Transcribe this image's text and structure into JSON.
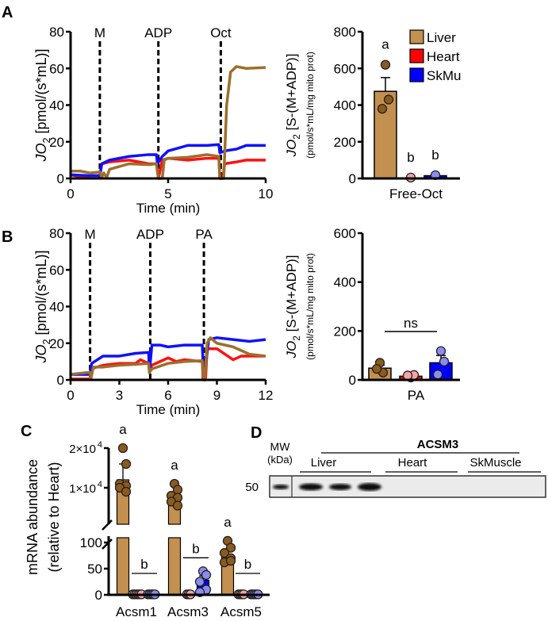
{
  "panels": {
    "A": "A",
    "B": "B",
    "C": "C",
    "D": "D"
  },
  "colors": {
    "liver_trace": "#9c6f2c",
    "heart_trace": "#ff1010",
    "skmu_trace": "#1010ff",
    "liver_bar": "#c4904f",
    "liver_pt": "#8b5a1e",
    "heart_bar": "#ff0000",
    "heart_pt": "#f4a4a4",
    "skmu_bar": "#0000ff",
    "skmu_pt": "#8c8cf0"
  },
  "chart_data": [
    {
      "id": "A-trace",
      "type": "line",
      "ylabel": "JO2 [pmol/(s*mL)]",
      "ylabel_main": "JO",
      "ylabel_sub": "2",
      "ylabel_rest": " [pmol/(s*mL)]",
      "xlabel": "Time (min)",
      "xlim": [
        0,
        10
      ],
      "ylim": [
        0,
        80
      ],
      "xticks": [
        "0",
        "5",
        "10"
      ],
      "xtick_values": [
        0,
        5,
        10
      ],
      "yticks": [
        "0",
        "20",
        "40",
        "60",
        "80"
      ],
      "ytick_values": [
        0,
        20,
        40,
        60,
        80
      ],
      "additions": [
        {
          "label": "M",
          "t": 1.5
        },
        {
          "label": "ADP",
          "t": 4.5
        },
        {
          "label": "Oct",
          "t": 7.7
        }
      ],
      "series": [
        {
          "name": "Heart",
          "color": "heart_trace",
          "points": [
            [
              0,
              2
            ],
            [
              0.7,
              0.5
            ],
            [
              1,
              1.5
            ],
            [
              1.5,
              1.5
            ],
            [
              1.6,
              8
            ],
            [
              2,
              9
            ],
            [
              3,
              10
            ],
            [
              4,
              8
            ],
            [
              4.4,
              8
            ],
            [
              4.5,
              0
            ],
            [
              4.7,
              10
            ],
            [
              5,
              11
            ],
            [
              6,
              10
            ],
            [
              7,
              11
            ],
            [
              7.6,
              11
            ],
            [
              7.65,
              0
            ],
            [
              7.8,
              0
            ],
            [
              7.9,
              8
            ],
            [
              8.5,
              9
            ],
            [
              9,
              10
            ],
            [
              10,
              10
            ]
          ]
        },
        {
          "name": "SkMu",
          "color": "skmu_trace",
          "points": [
            [
              0,
              2
            ],
            [
              1,
              1.5
            ],
            [
              1.5,
              1.5
            ],
            [
              1.6,
              8
            ],
            [
              2,
              10
            ],
            [
              3,
              12
            ],
            [
              4,
              13
            ],
            [
              4.4,
              13
            ],
            [
              4.45,
              8
            ],
            [
              4.7,
              12
            ],
            [
              5,
              15
            ],
            [
              6,
              18
            ],
            [
              7,
              18
            ],
            [
              7.6,
              18.5
            ],
            [
              7.65,
              14
            ],
            [
              7.9,
              15
            ],
            [
              8.5,
              16
            ],
            [
              9,
              18
            ],
            [
              10,
              18
            ]
          ]
        },
        {
          "name": "Liver",
          "color": "liver_trace",
          "points": [
            [
              0,
              4
            ],
            [
              0.5,
              4
            ],
            [
              1,
              3
            ],
            [
              1.5,
              3.5
            ],
            [
              1.6,
              0.5
            ],
            [
              1.7,
              3
            ],
            [
              1.85,
              0.5
            ],
            [
              2,
              5
            ],
            [
              3,
              8
            ],
            [
              4,
              7.5
            ],
            [
              4.4,
              8
            ],
            [
              4.5,
              0
            ],
            [
              4.7,
              0
            ],
            [
              4.8,
              10
            ],
            [
              5,
              11
            ],
            [
              6,
              11.5
            ],
            [
              7,
              13
            ],
            [
              7.6,
              12
            ],
            [
              7.65,
              0
            ],
            [
              7.85,
              0
            ],
            [
              8,
              40
            ],
            [
              8.2,
              58
            ],
            [
              8.5,
              61
            ],
            [
              9,
              60
            ],
            [
              10,
              60.5
            ]
          ]
        }
      ]
    },
    {
      "id": "A-bar",
      "type": "bar",
      "ylabel_main": "JO",
      "ylabel_sub": "2",
      "ylabel_rest": " [S-(M+ADP)]",
      "ylabel2": "(pmol/s*mL/mg mito prot)",
      "xlabel": "Free-Oct",
      "ylim": [
        0,
        800
      ],
      "yticks": [
        "0",
        "200",
        "400",
        "600",
        "800"
      ],
      "ytick_values": [
        0,
        200,
        400,
        600,
        800
      ],
      "legend": [
        "Liver",
        "Heart",
        "SkMu"
      ],
      "bars": [
        {
          "name": "Liver",
          "mean": 475,
          "sem": 75,
          "points": [
            620,
            430,
            380
          ],
          "sig": "a"
        },
        {
          "name": "Heart",
          "mean": 3,
          "sem": 0,
          "points": [
            5
          ],
          "sig": "b"
        },
        {
          "name": "SkMu",
          "mean": 15,
          "sem": 0,
          "points": [
            18
          ],
          "sig": "b"
        }
      ]
    },
    {
      "id": "B-trace",
      "type": "line",
      "ylabel_main": "JO",
      "ylabel_sub": "2",
      "ylabel_rest": " [pmol/(s*mL)]",
      "xlabel": "Time (min)",
      "xlim": [
        0,
        12
      ],
      "ylim": [
        0,
        80
      ],
      "xticks": [
        "0",
        "3",
        "6",
        "9",
        "12"
      ],
      "xtick_values": [
        0,
        3,
        6,
        9,
        12
      ],
      "yticks": [
        "0",
        "20",
        "40",
        "60",
        "80"
      ],
      "ytick_values": [
        0,
        20,
        40,
        60,
        80
      ],
      "additions": [
        {
          "label": "M",
          "t": 1.2
        },
        {
          "label": "ADP",
          "t": 4.9
        },
        {
          "label": "PA",
          "t": 8.2
        }
      ],
      "series": [
        {
          "name": "Heart",
          "color": "heart_trace",
          "points": [
            [
              0,
              0.5
            ],
            [
              1.2,
              0.5
            ],
            [
              1.25,
              6
            ],
            [
              2,
              8
            ],
            [
              3,
              9
            ],
            [
              4,
              9
            ],
            [
              4.3,
              11
            ],
            [
              4.8,
              9
            ],
            [
              4.85,
              5
            ],
            [
              5,
              8
            ],
            [
              6,
              12
            ],
            [
              6.5,
              10
            ],
            [
              7,
              11
            ],
            [
              8.1,
              10
            ],
            [
              8.15,
              0
            ],
            [
              8.3,
              0
            ],
            [
              8.4,
              17
            ],
            [
              9,
              17
            ],
            [
              10,
              11
            ],
            [
              10.5,
              13
            ],
            [
              12,
              13
            ]
          ]
        },
        {
          "name": "SkMu",
          "color": "skmu_trace",
          "points": [
            [
              0,
              3
            ],
            [
              1,
              3
            ],
            [
              1.2,
              3
            ],
            [
              1.3,
              9
            ],
            [
              2,
              13
            ],
            [
              3,
              13
            ],
            [
              4,
              14.5
            ],
            [
              4.8,
              15
            ],
            [
              4.85,
              4
            ],
            [
              5,
              19
            ],
            [
              5.5,
              19
            ],
            [
              6,
              18
            ],
            [
              7,
              19
            ],
            [
              8.1,
              19
            ],
            [
              8.15,
              9
            ],
            [
              8.3,
              8
            ],
            [
              8.5,
              22
            ],
            [
              9,
              23
            ],
            [
              10,
              22
            ],
            [
              11,
              21
            ],
            [
              12,
              22
            ]
          ]
        },
        {
          "name": "Liver",
          "color": "liver_trace",
          "points": [
            [
              0,
              3
            ],
            [
              1,
              4
            ],
            [
              1.2,
              4
            ],
            [
              1.25,
              0.5
            ],
            [
              1.4,
              7
            ],
            [
              2,
              7
            ],
            [
              3,
              8
            ],
            [
              4,
              8.5
            ],
            [
              4.8,
              9
            ],
            [
              4.85,
              4
            ],
            [
              5,
              6
            ],
            [
              6,
              9
            ],
            [
              7,
              10
            ],
            [
              8.1,
              10.5
            ],
            [
              8.15,
              3
            ],
            [
              8.25,
              0
            ],
            [
              8.4,
              20
            ],
            [
              8.6,
              23
            ],
            [
              9,
              20
            ],
            [
              10,
              18
            ],
            [
              11,
              14
            ],
            [
              12,
              13
            ]
          ]
        }
      ]
    },
    {
      "id": "B-bar",
      "type": "bar",
      "ylabel_main": "JO",
      "ylabel_sub": "2",
      "ylabel_rest": " [S-(M+ADP)]",
      "ylabel2": "(pmol/s*mL/mg mito prot)",
      "xlabel": "PA",
      "ylim": [
        0,
        600
      ],
      "yticks": [
        "0",
        "200",
        "400",
        "600"
      ],
      "ytick_values": [
        0,
        200,
        400,
        600
      ],
      "annotation": "ns",
      "bars": [
        {
          "name": "Liver",
          "mean": 48,
          "sem": 12,
          "points": [
            70,
            30,
            45
          ],
          "sig": ""
        },
        {
          "name": "Heart",
          "mean": 15,
          "sem": 5,
          "points": [
            10,
            20,
            18
          ],
          "sig": ""
        },
        {
          "name": "SkMu",
          "mean": 70,
          "sem": 30,
          "points": [
            118,
            75,
            22
          ],
          "sig": ""
        }
      ]
    },
    {
      "id": "C-bar",
      "type": "bar",
      "ylabel": "mRNA abundance",
      "ylabel2": "(relative to Heart)",
      "broken_axis": true,
      "ylim_lower": [
        0,
        100
      ],
      "ylim_upper": [
        800,
        20000
      ],
      "yticks_lower": [
        "0",
        "50",
        "100"
      ],
      "ytick_values_lower": [
        0,
        50,
        100
      ],
      "yticks_upper": [
        "1×10",
        "2×10"
      ],
      "yticks_upper_exp": "4",
      "ytick_values_upper": [
        10000,
        20000
      ],
      "categories": [
        "Acsm1",
        "Acsm3",
        "Acsm5"
      ],
      "groups": [
        {
          "category": "Acsm1",
          "liver": {
            "mean": 12000,
            "sem": 4000,
            "points": [
              20000,
              16000,
              11000,
              10500,
              10000,
              9000
            ]
          },
          "heart": {
            "mean": 1,
            "points": [
              1,
              1,
              1,
              1,
              1,
              1
            ]
          },
          "skmu": {
            "mean": 1,
            "points": [
              1,
              1,
              1,
              1,
              1
            ]
          },
          "sig_liver": "a",
          "sig_other": "b"
        },
        {
          "category": "Acsm3",
          "liver": {
            "mean": 7000,
            "sem": 0,
            "points": [
              11000,
              9500,
              8000,
              7500,
              6500,
              5500
            ]
          },
          "heart": {
            "mean": 1,
            "points": [
              1,
              1,
              1
            ]
          },
          "skmu": {
            "mean": 28,
            "sem": 8,
            "points": [
              45,
              38,
              25,
              10,
              5
            ]
          },
          "sig_liver": "a",
          "sig_other": "b"
        },
        {
          "category": "Acsm5",
          "liver": {
            "mean": 75,
            "sem": 10,
            "points": [
              180,
              90,
              80,
              70,
              62,
              65
            ]
          },
          "heart": {
            "mean": 1,
            "points": [
              1,
              1,
              1,
              1
            ]
          },
          "skmu": {
            "mean": 1,
            "points": [
              1,
              1,
              1,
              1,
              1
            ]
          },
          "sig_liver": "a",
          "sig_other": "b"
        }
      ]
    }
  ],
  "blot": {
    "title": "ACSM3",
    "mw_label": "MW",
    "mw_unit": "(kDa)",
    "mw_value": "50",
    "lanes": [
      "Liver",
      "Heart",
      "SkMuscle"
    ]
  }
}
